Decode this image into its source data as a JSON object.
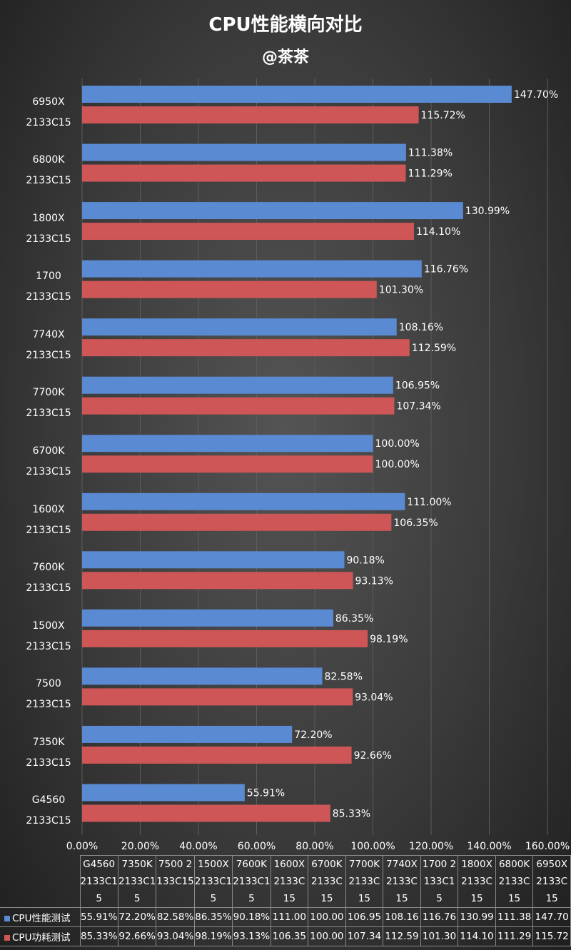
{
  "chart_data": {
    "type": "hbar",
    "title": "CPU性能横向对比",
    "subtitle": "@茶茶",
    "categories": [
      "G4560 2133C15",
      "7350K 2133C15",
      "7500 2133C15",
      "1500X 2133C15",
      "7600K 2133C15",
      "1600X 2133C15",
      "6700K 2133C15",
      "7700K 2133C15",
      "7740X 2133C15",
      "1700 2133C15",
      "1800X 2133C15",
      "6800K 2133C15",
      "6950X 2133C15"
    ],
    "series": [
      {
        "name": "CPU性能测试",
        "color": "#5a8ad2",
        "values": [
          55.91,
          72.2,
          82.58,
          86.35,
          90.18,
          111.0,
          100.0,
          106.95,
          108.16,
          116.76,
          130.99,
          111.38,
          147.7
        ],
        "value_labels": [
          "55.91%",
          "72.20%",
          "82.58%",
          "86.35%",
          "90.18%",
          "111.00%",
          "100.00%",
          "106.95%",
          "108.16%",
          "116.76%",
          "130.99%",
          "111.38%",
          "147.70%"
        ],
        "table_labels": [
          "55.91%",
          "72.20%",
          "82.58%",
          "86.35%",
          "90.18%",
          "111.00",
          "100.00",
          "106.95",
          "108.16",
          "116.76",
          "130.99",
          "111.38",
          "147.70"
        ]
      },
      {
        "name": "CPU功耗测试",
        "color": "#cf5656",
        "values": [
          85.33,
          92.66,
          93.04,
          98.19,
          93.13,
          106.35,
          100.0,
          107.34,
          112.59,
          101.3,
          114.1,
          111.29,
          115.72
        ],
        "value_labels": [
          "85.33%",
          "92.66%",
          "93.04%",
          "98.19%",
          "93.13%",
          "106.35%",
          "100.00%",
          "107.34%",
          "112.59%",
          "101.30%",
          "114.10%",
          "111.29%",
          "115.72%"
        ],
        "table_labels": [
          "85.33%",
          "92.66%",
          "93.04%",
          "98.19%",
          "93.13%",
          "106.35",
          "100.00",
          "107.34",
          "112.59",
          "101.30",
          "114.10",
          "111.29",
          "115.72"
        ]
      }
    ],
    "xlim": [
      0,
      160
    ],
    "xticks": [
      {
        "value": 0,
        "label": "0.00%"
      },
      {
        "value": 20,
        "label": "20.00%"
      },
      {
        "value": 40,
        "label": "40.00%"
      },
      {
        "value": 60,
        "label": "60.00%"
      },
      {
        "value": 80,
        "label": "80.00%"
      },
      {
        "value": 100,
        "label": "100.00%"
      },
      {
        "value": 120,
        "label": "120.00%"
      },
      {
        "value": 140,
        "label": "140.00%"
      },
      {
        "value": 160,
        "label": "160.00%"
      }
    ],
    "grid": true
  }
}
